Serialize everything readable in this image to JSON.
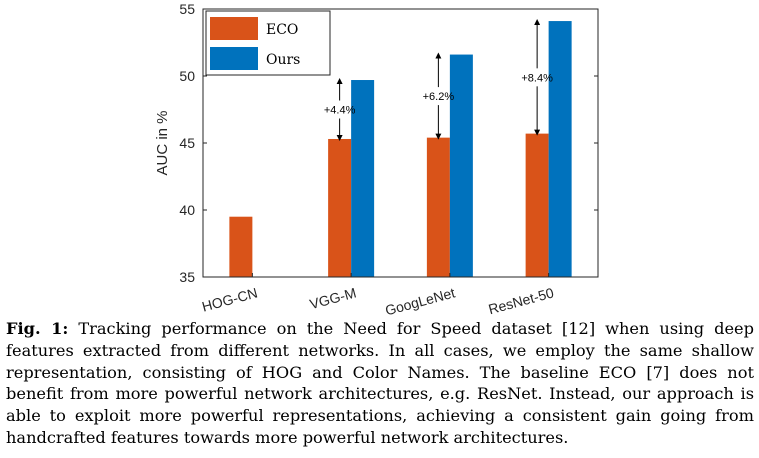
{
  "chart_data": {
    "type": "bar",
    "categories": [
      "HOG-CN",
      "VGG-M",
      "GoogLeNet",
      "ResNet-50"
    ],
    "series": [
      {
        "name": "ECO",
        "color": "#D95319",
        "values": [
          39.5,
          45.3,
          45.4,
          45.7
        ]
      },
      {
        "name": "Ours",
        "color": "#0072BD",
        "values": [
          null,
          49.7,
          51.6,
          54.1
        ]
      }
    ],
    "ylabel": "AUC in %",
    "xlabel": "",
    "ylim": [
      35,
      55
    ],
    "yticks": [
      35,
      40,
      45,
      50,
      55
    ],
    "grid": false,
    "legend_position": "top-left",
    "annotations": [
      {
        "category": "VGG-M",
        "text": "+4.4%"
      },
      {
        "category": "GoogLeNet",
        "text": "+6.2%"
      },
      {
        "category": "ResNet-50",
        "text": "+8.4%"
      }
    ]
  },
  "caption": {
    "label": "Fig. 1:",
    "text": "Tracking performance on the Need for Speed dataset [12] when using deep features extracted from different networks. In all cases, we employ the same shallow representation, consisting of HOG and Color Names. The baseline ECO [7] does not benefit from more powerful network architectures, e.g. ResNet. Instead, our approach is able to exploit more powerful representations, achieving a consistent gain going from handcrafted features towards more powerful network architectures."
  }
}
